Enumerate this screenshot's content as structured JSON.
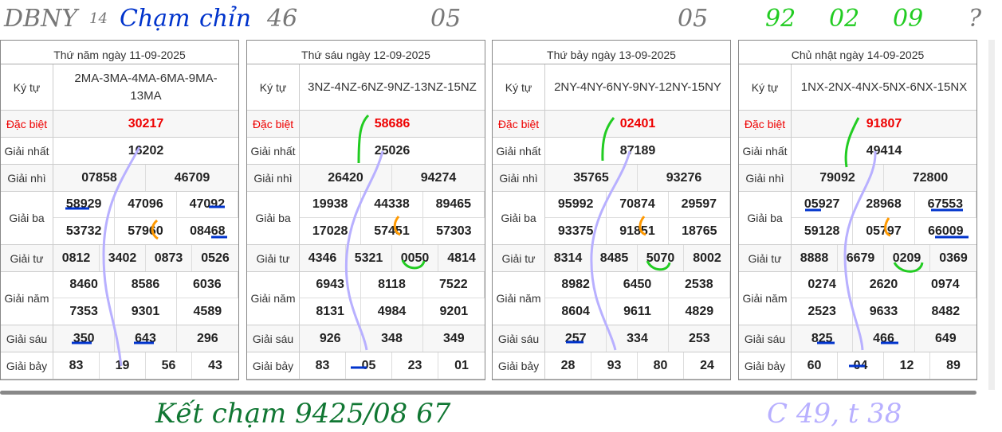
{
  "row_labels": [
    "Ký tự",
    "Đặc biệt",
    "Giải nhất",
    "Giải nhì",
    "Giải ba",
    "Giải tư",
    "Giải năm",
    "Giải sáu",
    "Giải bảy"
  ],
  "tables": [
    {
      "caption": "Thứ năm ngày 11-09-2025",
      "ky_tu": "2MA-3MA-4MA-6MA-9MA-13MA",
      "dac_biet": [
        "30217"
      ],
      "nhat": [
        "16202"
      ],
      "nhi": [
        "07858",
        "46709"
      ],
      "ba": [
        "58929",
        "47096",
        "47092",
        "53732",
        "57960",
        "08468"
      ],
      "tu": [
        "0812",
        "3402",
        "0873",
        "0526"
      ],
      "nam": [
        "8460",
        "8586",
        "6036",
        "7353",
        "9301",
        "4589"
      ],
      "sau": [
        "350",
        "643",
        "296"
      ],
      "bay": [
        "83",
        "19",
        "56",
        "43"
      ]
    },
    {
      "caption": "Thứ sáu ngày 12-09-2025",
      "ky_tu": "3NZ-4NZ-6NZ-9NZ-13NZ-15NZ",
      "dac_biet": [
        "58686"
      ],
      "nhat": [
        "25026"
      ],
      "nhi": [
        "26420",
        "94274"
      ],
      "ba": [
        "19938",
        "44338",
        "89465",
        "17028",
        "57451",
        "57303"
      ],
      "tu": [
        "4346",
        "5321",
        "0050",
        "4814"
      ],
      "nam": [
        "6943",
        "8118",
        "7522",
        "8131",
        "4984",
        "9201"
      ],
      "sau": [
        "926",
        "348",
        "349"
      ],
      "bay": [
        "83",
        "05",
        "23",
        "01"
      ]
    },
    {
      "caption": "Thứ bảy ngày 13-09-2025",
      "ky_tu": "2NY-4NY-6NY-9NY-12NY-15NY",
      "dac_biet": [
        "02401"
      ],
      "nhat": [
        "87189"
      ],
      "nhi": [
        "35765",
        "93276"
      ],
      "ba": [
        "95992",
        "70874",
        "29597",
        "93375",
        "91851",
        "18765"
      ],
      "tu": [
        "8314",
        "8485",
        "5070",
        "8002"
      ],
      "nam": [
        "8982",
        "6450",
        "2538",
        "8604",
        "9611",
        "4829"
      ],
      "sau": [
        "257",
        "334",
        "253"
      ],
      "bay": [
        "28",
        "93",
        "80",
        "24"
      ]
    },
    {
      "caption": "Chủ nhật ngày 14-09-2025",
      "ky_tu": "1NX-2NX-4NX-5NX-6NX-15NX",
      "dac_biet": [
        "91807"
      ],
      "nhat": [
        "49414"
      ],
      "nhi": [
        "79092",
        "72800"
      ],
      "ba": [
        "05927",
        "28968",
        "67553",
        "59128",
        "05797",
        "66009"
      ],
      "tu": [
        "8888",
        "6679",
        "0209",
        "0369"
      ],
      "nam": [
        "0274",
        "2620",
        "0974",
        "2523",
        "9633",
        "8482"
      ],
      "sau": [
        "825",
        "466",
        "649"
      ],
      "bay": [
        "60",
        "04",
        "12",
        "89"
      ]
    }
  ],
  "annotations": {
    "a1": "DBNY",
    "a2": "14",
    "a3": "46",
    "a4": "Chạm",
    "a5": "chỉn",
    "a6": "05",
    "a7": "05",
    "a8": "?",
    "a9": "92",
    "a10": "02",
    "a11": "09",
    "a12": "Kết chạm 9425/08 67",
    "a13": "C 49, t 38"
  },
  "colors": {
    "special": "#ee0000",
    "annot_green": "#22cc22",
    "annot_blue": "#0033cc",
    "annot_gray": "#888888",
    "annot_purple": "#b8b0ff",
    "annot_darkgreen": "#117733"
  }
}
